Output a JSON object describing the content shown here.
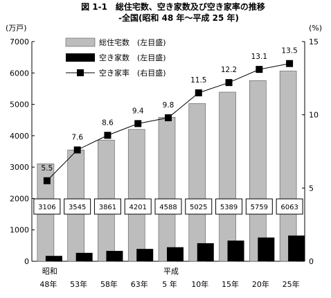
{
  "title": "図 1-1　総住宅数、空き家数及び空き家率の推移",
  "subtitle": "-全国(昭和 48 年～平成 25 年)",
  "chart_data": {
    "type": "bar",
    "categories": [
      "48年",
      "53年",
      "58年",
      "63年",
      "5 年",
      "10年",
      "15年",
      "20年",
      "25年"
    ],
    "era_labels": [
      {
        "index": 0,
        "label": "昭和"
      },
      {
        "index": 4,
        "label": "平成"
      }
    ],
    "left_axis": {
      "unit": "(万戸)",
      "ylim": [
        0,
        7000
      ],
      "ticks": [
        0,
        1000,
        2000,
        3000,
        4000,
        5000,
        6000,
        7000
      ]
    },
    "right_axis": {
      "unit": "(%)",
      "ylim": [
        0,
        15
      ],
      "ticks": [
        0,
        5,
        10,
        15
      ]
    },
    "series": [
      {
        "name": "総住宅数　(左目盛)",
        "type": "bar",
        "axis": "left",
        "color": "#bdbdbd",
        "values": [
          3106,
          3545,
          3861,
          4201,
          4588,
          5025,
          5389,
          5759,
          6063
        ]
      },
      {
        "name": "空き家数　(左目盛)",
        "type": "bar",
        "axis": "left",
        "color": "#000000",
        "values": [
          172,
          268,
          330,
          394,
          448,
          576,
          659,
          757,
          820
        ]
      },
      {
        "name": "空き家率　(右目盛)",
        "type": "line",
        "axis": "right",
        "color": "#000000",
        "values": [
          5.5,
          7.6,
          8.6,
          9.4,
          9.8,
          11.5,
          12.2,
          13.1,
          13.5
        ]
      }
    ],
    "bar_value_labels": [
      "3106",
      "3545",
      "3861",
      "4201",
      "4588",
      "5025",
      "5389",
      "5759",
      "6063"
    ],
    "rate_labels": [
      "5.5",
      "7.6",
      "8.6",
      "9.4",
      "9.8",
      "11.5",
      "12.2",
      "13.1",
      "13.5"
    ],
    "legend_position": "top-left",
    "grid": false
  }
}
